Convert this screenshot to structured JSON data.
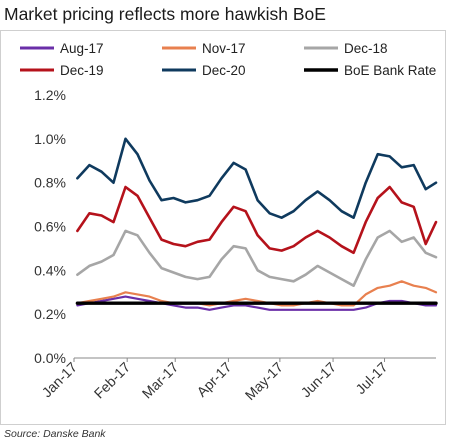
{
  "chart_data": {
    "type": "line",
    "title": "Market pricing reflects more hawkish BoE",
    "source": "Source: Danske Bank",
    "xlabel": "",
    "ylabel": "",
    "ylim": [
      0.0,
      1.2
    ],
    "yticks": [
      "0.0%",
      "0.2%",
      "0.4%",
      "0.6%",
      "0.8%",
      "1.0%",
      "1.2%"
    ],
    "xlim": [
      "2017-01-01",
      "2017-07-31"
    ],
    "xticks": [
      {
        "date": "2017-01-01",
        "label": "Jan-17"
      },
      {
        "date": "2017-02-01",
        "label": "Feb-17"
      },
      {
        "date": "2017-03-01",
        "label": "Mar-17"
      },
      {
        "date": "2017-04-01",
        "label": "Apr-17"
      },
      {
        "date": "2017-05-01",
        "label": "May-17"
      },
      {
        "date": "2017-06-01",
        "label": "Jun-17"
      },
      {
        "date": "2017-07-01",
        "label": "Jul-17"
      }
    ],
    "grid": false,
    "legend": "top",
    "series": [
      {
        "name": "Aug-17",
        "color": "#6a2fa8",
        "width": 2.2,
        "points": [
          [
            "2017-01-03",
            0.24
          ],
          [
            "2017-01-10",
            0.25
          ],
          [
            "2017-01-17",
            0.26
          ],
          [
            "2017-01-24",
            0.27
          ],
          [
            "2017-01-31",
            0.28
          ],
          [
            "2017-02-07",
            0.27
          ],
          [
            "2017-02-14",
            0.26
          ],
          [
            "2017-02-21",
            0.25
          ],
          [
            "2017-02-28",
            0.24
          ],
          [
            "2017-03-07",
            0.23
          ],
          [
            "2017-03-14",
            0.23
          ],
          [
            "2017-03-21",
            0.22
          ],
          [
            "2017-03-28",
            0.23
          ],
          [
            "2017-04-04",
            0.24
          ],
          [
            "2017-04-11",
            0.24
          ],
          [
            "2017-04-18",
            0.23
          ],
          [
            "2017-04-25",
            0.22
          ],
          [
            "2017-05-02",
            0.22
          ],
          [
            "2017-05-09",
            0.22
          ],
          [
            "2017-05-16",
            0.22
          ],
          [
            "2017-05-23",
            0.22
          ],
          [
            "2017-05-30",
            0.22
          ],
          [
            "2017-06-06",
            0.22
          ],
          [
            "2017-06-13",
            0.22
          ],
          [
            "2017-06-20",
            0.23
          ],
          [
            "2017-06-27",
            0.25
          ],
          [
            "2017-07-04",
            0.26
          ],
          [
            "2017-07-11",
            0.26
          ],
          [
            "2017-07-18",
            0.25
          ],
          [
            "2017-07-25",
            0.24
          ],
          [
            "2017-07-31",
            0.24
          ]
        ]
      },
      {
        "name": "Nov-17",
        "color": "#e8804f",
        "width": 2.2,
        "points": [
          [
            "2017-01-03",
            0.25
          ],
          [
            "2017-01-10",
            0.26
          ],
          [
            "2017-01-17",
            0.27
          ],
          [
            "2017-01-24",
            0.28
          ],
          [
            "2017-01-31",
            0.3
          ],
          [
            "2017-02-07",
            0.29
          ],
          [
            "2017-02-14",
            0.28
          ],
          [
            "2017-02-21",
            0.26
          ],
          [
            "2017-02-28",
            0.25
          ],
          [
            "2017-03-07",
            0.25
          ],
          [
            "2017-03-14",
            0.25
          ],
          [
            "2017-03-21",
            0.24
          ],
          [
            "2017-03-28",
            0.25
          ],
          [
            "2017-04-04",
            0.26
          ],
          [
            "2017-04-11",
            0.27
          ],
          [
            "2017-04-18",
            0.26
          ],
          [
            "2017-04-25",
            0.25
          ],
          [
            "2017-05-02",
            0.24
          ],
          [
            "2017-05-09",
            0.24
          ],
          [
            "2017-05-16",
            0.25
          ],
          [
            "2017-05-23",
            0.26
          ],
          [
            "2017-05-30",
            0.25
          ],
          [
            "2017-06-06",
            0.24
          ],
          [
            "2017-06-13",
            0.24
          ],
          [
            "2017-06-20",
            0.29
          ],
          [
            "2017-06-27",
            0.32
          ],
          [
            "2017-07-04",
            0.33
          ],
          [
            "2017-07-11",
            0.35
          ],
          [
            "2017-07-18",
            0.33
          ],
          [
            "2017-07-25",
            0.32
          ],
          [
            "2017-07-31",
            0.3
          ]
        ]
      },
      {
        "name": "Dec-18",
        "color": "#a6a6a6",
        "width": 2.6,
        "points": [
          [
            "2017-01-03",
            0.38
          ],
          [
            "2017-01-10",
            0.42
          ],
          [
            "2017-01-17",
            0.44
          ],
          [
            "2017-01-24",
            0.47
          ],
          [
            "2017-01-31",
            0.58
          ],
          [
            "2017-02-07",
            0.56
          ],
          [
            "2017-02-14",
            0.48
          ],
          [
            "2017-02-21",
            0.41
          ],
          [
            "2017-02-28",
            0.39
          ],
          [
            "2017-03-07",
            0.37
          ],
          [
            "2017-03-14",
            0.36
          ],
          [
            "2017-03-21",
            0.37
          ],
          [
            "2017-03-28",
            0.45
          ],
          [
            "2017-04-04",
            0.51
          ],
          [
            "2017-04-11",
            0.5
          ],
          [
            "2017-04-18",
            0.4
          ],
          [
            "2017-04-25",
            0.37
          ],
          [
            "2017-05-02",
            0.36
          ],
          [
            "2017-05-09",
            0.35
          ],
          [
            "2017-05-16",
            0.38
          ],
          [
            "2017-05-23",
            0.42
          ],
          [
            "2017-05-30",
            0.39
          ],
          [
            "2017-06-06",
            0.36
          ],
          [
            "2017-06-13",
            0.33
          ],
          [
            "2017-06-20",
            0.45
          ],
          [
            "2017-06-27",
            0.55
          ],
          [
            "2017-07-04",
            0.58
          ],
          [
            "2017-07-11",
            0.53
          ],
          [
            "2017-07-18",
            0.55
          ],
          [
            "2017-07-25",
            0.48
          ],
          [
            "2017-07-31",
            0.46
          ]
        ]
      },
      {
        "name": "Dec-19",
        "color": "#b5121b",
        "width": 2.6,
        "points": [
          [
            "2017-01-03",
            0.58
          ],
          [
            "2017-01-10",
            0.66
          ],
          [
            "2017-01-17",
            0.65
          ],
          [
            "2017-01-24",
            0.62
          ],
          [
            "2017-01-31",
            0.78
          ],
          [
            "2017-02-07",
            0.74
          ],
          [
            "2017-02-14",
            0.64
          ],
          [
            "2017-02-21",
            0.54
          ],
          [
            "2017-02-28",
            0.52
          ],
          [
            "2017-03-07",
            0.51
          ],
          [
            "2017-03-14",
            0.53
          ],
          [
            "2017-03-21",
            0.54
          ],
          [
            "2017-03-28",
            0.62
          ],
          [
            "2017-04-04",
            0.69
          ],
          [
            "2017-04-11",
            0.67
          ],
          [
            "2017-04-18",
            0.56
          ],
          [
            "2017-04-25",
            0.5
          ],
          [
            "2017-05-02",
            0.49
          ],
          [
            "2017-05-09",
            0.51
          ],
          [
            "2017-05-16",
            0.55
          ],
          [
            "2017-05-23",
            0.58
          ],
          [
            "2017-05-30",
            0.55
          ],
          [
            "2017-06-06",
            0.51
          ],
          [
            "2017-06-13",
            0.48
          ],
          [
            "2017-06-20",
            0.62
          ],
          [
            "2017-06-27",
            0.73
          ],
          [
            "2017-07-04",
            0.78
          ],
          [
            "2017-07-11",
            0.71
          ],
          [
            "2017-07-18",
            0.69
          ],
          [
            "2017-07-25",
            0.52
          ],
          [
            "2017-07-31",
            0.62
          ]
        ]
      },
      {
        "name": "Dec-20",
        "color": "#0f3a5e",
        "width": 2.6,
        "points": [
          [
            "2017-01-03",
            0.82
          ],
          [
            "2017-01-10",
            0.88
          ],
          [
            "2017-01-17",
            0.85
          ],
          [
            "2017-01-24",
            0.8
          ],
          [
            "2017-01-31",
            1.0
          ],
          [
            "2017-02-07",
            0.93
          ],
          [
            "2017-02-14",
            0.81
          ],
          [
            "2017-02-21",
            0.72
          ],
          [
            "2017-02-28",
            0.73
          ],
          [
            "2017-03-07",
            0.71
          ],
          [
            "2017-03-14",
            0.72
          ],
          [
            "2017-03-21",
            0.74
          ],
          [
            "2017-03-28",
            0.82
          ],
          [
            "2017-04-04",
            0.89
          ],
          [
            "2017-04-11",
            0.86
          ],
          [
            "2017-04-18",
            0.72
          ],
          [
            "2017-04-25",
            0.66
          ],
          [
            "2017-05-02",
            0.64
          ],
          [
            "2017-05-09",
            0.67
          ],
          [
            "2017-05-16",
            0.72
          ],
          [
            "2017-05-23",
            0.76
          ],
          [
            "2017-05-30",
            0.72
          ],
          [
            "2017-06-06",
            0.67
          ],
          [
            "2017-06-13",
            0.64
          ],
          [
            "2017-06-20",
            0.8
          ],
          [
            "2017-06-27",
            0.93
          ],
          [
            "2017-07-04",
            0.92
          ],
          [
            "2017-07-11",
            0.87
          ],
          [
            "2017-07-18",
            0.88
          ],
          [
            "2017-07-25",
            0.77
          ],
          [
            "2017-07-31",
            0.8
          ]
        ]
      },
      {
        "name": "BoE Bank Rate",
        "color": "#000000",
        "width": 3.4,
        "points": [
          [
            "2017-01-03",
            0.25
          ],
          [
            "2017-07-31",
            0.25
          ]
        ]
      }
    ]
  }
}
